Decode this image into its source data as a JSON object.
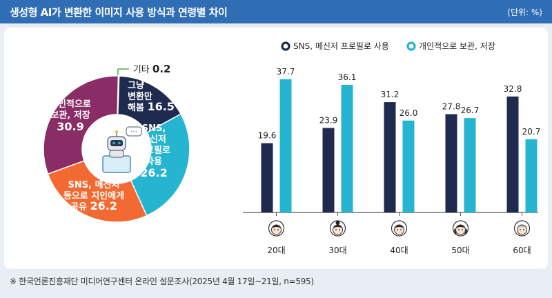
{
  "header": {
    "title": "생성형 AI가 변환한 이미지 사용 방식과 연령별 차이",
    "unit": "(단위: %)"
  },
  "footer": {
    "source": "※ 한국언론진흥재단 미디어연구센터 온라인 설문조사(2025년 4월 17일~21일, n=595)"
  },
  "colors": {
    "navy": "#1f2a4f",
    "teal": "#26b5d0",
    "orange": "#f26a31",
    "purple": "#8a2d66",
    "green": "#4cae4c",
    "header": "#2f6db5"
  },
  "chart_data": [
    {
      "type": "pie",
      "variant": "donut",
      "slices": [
        {
          "label_lines": [
            "기타"
          ],
          "value": 0.2,
          "color": "#4cae4c"
        },
        {
          "label_lines": [
            "그냥",
            "변환만",
            "해봄"
          ],
          "value": 16.5,
          "color": "#1f2a4f"
        },
        {
          "label_lines": [
            "SNS,",
            "메신저",
            "프로필로",
            "사용"
          ],
          "value": 26.2,
          "color": "#26b5d0"
        },
        {
          "label_lines": [
            "SNS, 메신저",
            "등으로 지인에게",
            "공유"
          ],
          "value": 26.2,
          "color": "#f26a31"
        },
        {
          "label_lines": [
            "개인적으로",
            "보관, 저장"
          ],
          "value": 30.9,
          "color": "#8a2d66"
        }
      ],
      "center_icon": "robot-at-computer-icon"
    },
    {
      "type": "bar",
      "categories": [
        "20대",
        "30대",
        "40대",
        "50대",
        "60대"
      ],
      "series": [
        {
          "name": "SNS, 메신저 프로필로 사용",
          "values": [
            19.6,
            23.9,
            31.2,
            27.8,
            32.8
          ],
          "color": "#1f2a4f"
        },
        {
          "name": "개인적으로 보관, 저장",
          "values": [
            37.7,
            36.1,
            26.0,
            26.7,
            20.7
          ],
          "color": "#26b5d0"
        }
      ],
      "ylim": [
        0,
        40
      ],
      "legend": "top",
      "grid": false,
      "category_icons": [
        "young-man-face-icon",
        "young-woman-face-icon",
        "middle-aged-man-face-icon",
        "middle-aged-woman-face-icon",
        "elderly-face-icon"
      ]
    }
  ]
}
